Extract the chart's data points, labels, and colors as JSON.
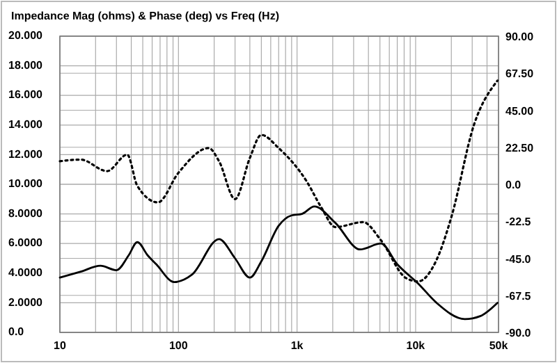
{
  "chart_data": {
    "type": "line",
    "title": "Impedance Mag (ohms) & Phase (deg) vs Freq (Hz)",
    "log": "x",
    "grid": true,
    "xlim": [
      10,
      50000
    ],
    "xticks": [
      {
        "value": 10,
        "label": "10"
      },
      {
        "value": 20,
        "label": null
      },
      {
        "value": 30,
        "label": null
      },
      {
        "value": 40,
        "label": null
      },
      {
        "value": 50,
        "label": null
      },
      {
        "value": 60,
        "label": null
      },
      {
        "value": 70,
        "label": null
      },
      {
        "value": 80,
        "label": null
      },
      {
        "value": 90,
        "label": null
      },
      {
        "value": 100,
        "label": "100"
      },
      {
        "value": 200,
        "label": null
      },
      {
        "value": 300,
        "label": null
      },
      {
        "value": 400,
        "label": null
      },
      {
        "value": 500,
        "label": null
      },
      {
        "value": 600,
        "label": null
      },
      {
        "value": 700,
        "label": null
      },
      {
        "value": 800,
        "label": null
      },
      {
        "value": 900,
        "label": null
      },
      {
        "value": 1000,
        "label": "1k"
      },
      {
        "value": 2000,
        "label": null
      },
      {
        "value": 3000,
        "label": null
      },
      {
        "value": 4000,
        "label": null
      },
      {
        "value": 5000,
        "label": null
      },
      {
        "value": 6000,
        "label": null
      },
      {
        "value": 7000,
        "label": null
      },
      {
        "value": 8000,
        "label": null
      },
      {
        "value": 9000,
        "label": null
      },
      {
        "value": 10000,
        "label": "10k"
      },
      {
        "value": 20000,
        "label": null
      },
      {
        "value": 30000,
        "label": null
      },
      {
        "value": 40000,
        "label": null
      },
      {
        "value": 50000,
        "label": "50k"
      }
    ],
    "ylim": [
      0,
      20
    ],
    "yticks": [
      {
        "value": 0,
        "label": "0.0"
      },
      {
        "value": 2,
        "label": "2.0000"
      },
      {
        "value": 4,
        "label": "4.0000"
      },
      {
        "value": 6,
        "label": "6.0000"
      },
      {
        "value": 8,
        "label": "8.0000"
      },
      {
        "value": 10,
        "label": "10.000"
      },
      {
        "value": 12,
        "label": "12.000"
      },
      {
        "value": 14,
        "label": "14.000"
      },
      {
        "value": 16,
        "label": "16.000"
      },
      {
        "value": 18,
        "label": "18.000"
      },
      {
        "value": 20,
        "label": "20.000"
      }
    ],
    "y2lim": [
      -90,
      90
    ],
    "y2ticks": [
      {
        "value": -90,
        "label": "-90.0"
      },
      {
        "value": -67.5,
        "label": "-67.5"
      },
      {
        "value": -45,
        "label": "-45.0"
      },
      {
        "value": -22.5,
        "label": "-22.5"
      },
      {
        "value": 0,
        "label": "0.0"
      },
      {
        "value": 22.5,
        "label": "22.50"
      },
      {
        "value": 45,
        "label": "45.00"
      },
      {
        "value": 67.5,
        "label": "67.50"
      },
      {
        "value": 90,
        "label": "90.00"
      }
    ],
    "series": [
      {
        "color": "#000000",
        "line_style": "solid",
        "x": [
          10,
          15,
          22,
          30,
          38,
          45,
          55,
          65,
          92,
          130,
          220,
          300,
          400,
          500,
          700,
          900,
          1100,
          1400,
          2100,
          3400,
          5100,
          7000,
          10500,
          15000,
          26000,
          35000,
          49000
        ],
        "values": [
          3.7,
          4.1,
          4.5,
          4.2,
          5.2,
          6.1,
          5.2,
          4.6,
          3.4,
          3.9,
          6.3,
          5.0,
          3.7,
          4.8,
          7.2,
          7.9,
          8.0,
          8.5,
          7.4,
          5.6,
          6.0,
          4.6,
          3.3,
          2.0,
          0.9,
          1.1,
          2.0
        ]
      },
      {
        "color": "#000000",
        "line_style": "dotted",
        "axis": "y2",
        "x": [
          10,
          15,
          25,
          37,
          45,
          67,
          100,
          180,
          220,
          300,
          400,
          500,
          700,
          1200,
          1600,
          2100,
          3600,
          5100,
          8300,
          10500,
          15000,
          20000,
          31000,
          49000
        ],
        "values": [
          14,
          15,
          8,
          18,
          -1,
          -11,
          7,
          22,
          14,
          -9,
          16,
          30,
          22,
          2,
          -14,
          -26,
          -23,
          -34,
          -57,
          -59,
          -46,
          -20,
          36,
          63
        ]
      }
    ]
  }
}
